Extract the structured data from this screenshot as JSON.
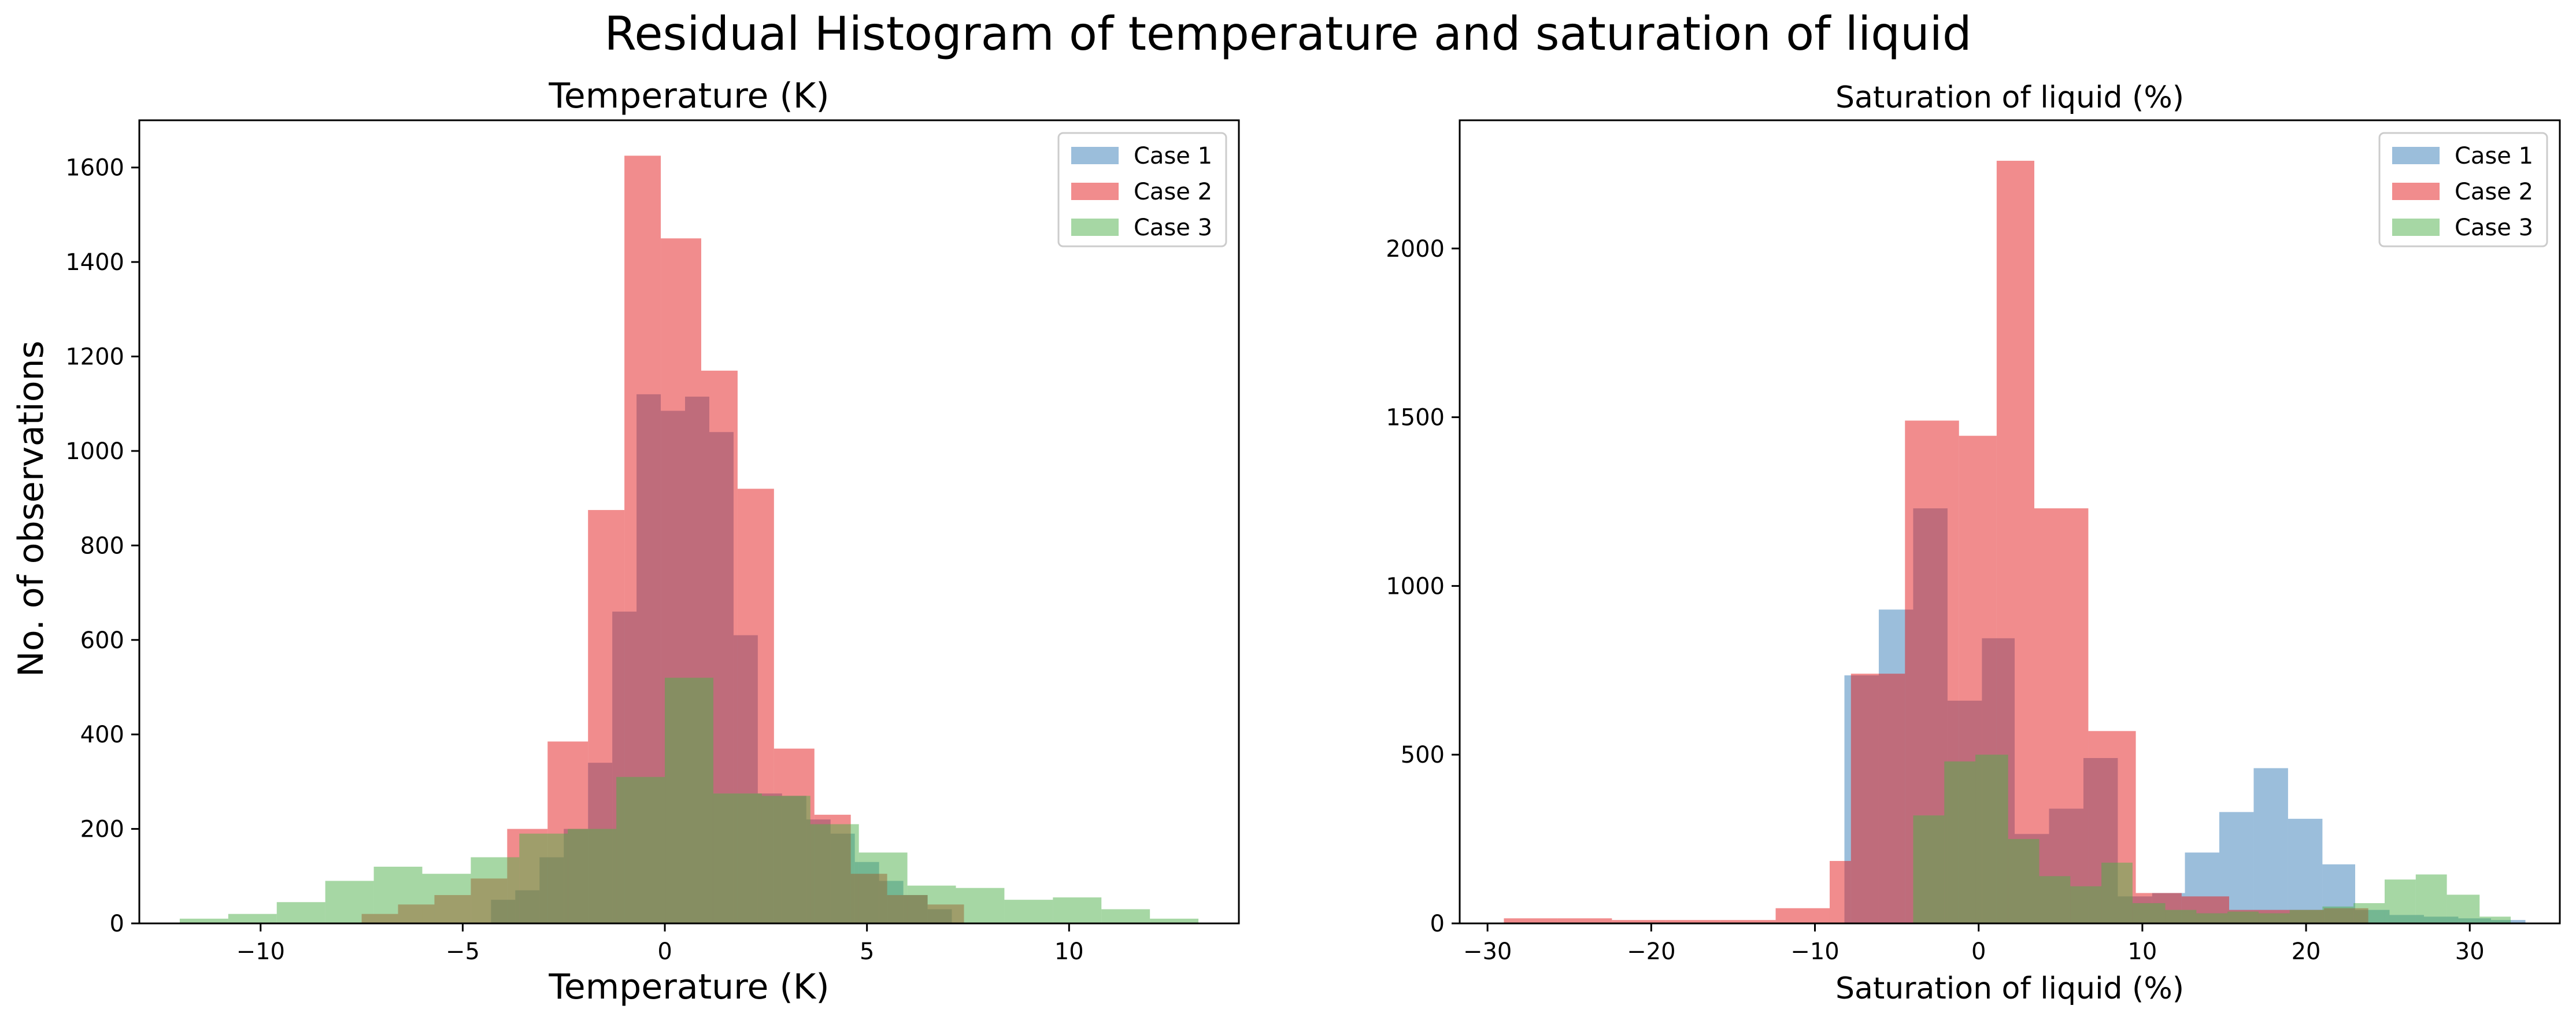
{
  "figure": {
    "suptitle": "Residual Histogram of temperature and saturation of liquid",
    "shared_ylabel": "No. of observations"
  },
  "colors": {
    "case1": "#377eb8",
    "case2": "#e41a1c",
    "case3": "#4daf4a",
    "axes": "#000000"
  },
  "chart_data": [
    {
      "type": "histogram",
      "title": "Temperature (K)",
      "xlabel": "Temperature (K)",
      "ylabel": "No. of observations",
      "xlim": [
        -13,
        14.2
      ],
      "ylim": [
        0,
        1700
      ],
      "xticks": [
        -10,
        -5,
        0,
        5,
        10
      ],
      "xtick_labels": [
        "−10",
        "−5",
        "0",
        "5",
        "10"
      ],
      "yticks": [
        0,
        200,
        400,
        600,
        800,
        1000,
        1200,
        1400,
        1600
      ],
      "ytick_labels": [
        "0",
        "200",
        "400",
        "600",
        "800",
        "1000",
        "1200",
        "1400",
        "1600"
      ],
      "legend": "top-right",
      "grid": false,
      "series": [
        {
          "name": "Case 1",
          "color": "#377eb8",
          "bins": [
            [
              -4.3,
              -3.7,
              50
            ],
            [
              -3.7,
              -3.1,
              70
            ],
            [
              -3.1,
              -2.5,
              140
            ],
            [
              -2.5,
              -1.9,
              200
            ],
            [
              -1.9,
              -1.3,
              340
            ],
            [
              -1.3,
              -0.7,
              660
            ],
            [
              -0.7,
              -0.1,
              1120
            ],
            [
              -0.1,
              0.5,
              1085
            ],
            [
              0.5,
              1.1,
              1115
            ],
            [
              1.1,
              1.7,
              1040
            ],
            [
              1.7,
              2.3,
              610
            ],
            [
              2.3,
              2.9,
              275
            ],
            [
              2.9,
              3.5,
              270
            ],
            [
              3.5,
              4.1,
              220
            ],
            [
              4.1,
              4.7,
              190
            ],
            [
              4.7,
              5.3,
              130
            ],
            [
              5.3,
              5.9,
              90
            ],
            [
              5.9,
              6.5,
              60
            ],
            [
              6.5,
              7.1,
              30
            ]
          ]
        },
        {
          "name": "Case 2",
          "color": "#e41a1c",
          "bins": [
            [
              -7.5,
              -6.6,
              20
            ],
            [
              -6.6,
              -5.7,
              40
            ],
            [
              -5.7,
              -4.8,
              60
            ],
            [
              -4.8,
              -3.9,
              95
            ],
            [
              -3.9,
              -2.9,
              200
            ],
            [
              -2.9,
              -1.9,
              385
            ],
            [
              -1.9,
              -1.0,
              875
            ],
            [
              -1.0,
              -0.1,
              1625
            ],
            [
              -0.1,
              0.9,
              1450
            ],
            [
              0.9,
              1.8,
              1170
            ],
            [
              1.8,
              2.7,
              920
            ],
            [
              2.7,
              3.7,
              370
            ],
            [
              3.7,
              4.6,
              230
            ],
            [
              4.6,
              5.5,
              105
            ],
            [
              5.5,
              6.5,
              60
            ],
            [
              6.5,
              7.4,
              40
            ]
          ]
        },
        {
          "name": "Case 3",
          "color": "#4daf4a",
          "bins": [
            [
              -12.0,
              -10.8,
              10
            ],
            [
              -10.8,
              -9.6,
              20
            ],
            [
              -9.6,
              -8.4,
              45
            ],
            [
              -8.4,
              -7.2,
              90
            ],
            [
              -7.2,
              -6.0,
              120
            ],
            [
              -6.0,
              -4.8,
              105
            ],
            [
              -4.8,
              -3.6,
              140
            ],
            [
              -3.6,
              -2.4,
              190
            ],
            [
              -2.4,
              -1.2,
              200
            ],
            [
              -1.2,
              0.0,
              310
            ],
            [
              0.0,
              1.2,
              520
            ],
            [
              1.2,
              2.4,
              275
            ],
            [
              2.4,
              3.6,
              270
            ],
            [
              3.6,
              4.8,
              210
            ],
            [
              4.8,
              6.0,
              150
            ],
            [
              6.0,
              7.2,
              80
            ],
            [
              7.2,
              8.4,
              75
            ],
            [
              8.4,
              9.6,
              50
            ],
            [
              9.6,
              10.8,
              55
            ],
            [
              10.8,
              12.0,
              30
            ],
            [
              12.0,
              13.2,
              10
            ]
          ]
        }
      ]
    },
    {
      "type": "histogram",
      "title": "Saturation of liquid (%)",
      "xlabel": "Saturation of liquid (%)",
      "ylabel": "",
      "xlim": [
        -31.7,
        35.5
      ],
      "ylim": [
        0,
        2380
      ],
      "xticks": [
        -30,
        -20,
        -10,
        0,
        10,
        20,
        30
      ],
      "xtick_labels": [
        "−30",
        "−20",
        "−10",
        "0",
        "10",
        "20",
        "30"
      ],
      "yticks": [
        0,
        500,
        1000,
        1500,
        2000
      ],
      "ytick_labels": [
        "0",
        "500",
        "1000",
        "1500",
        "2000"
      ],
      "legend": "top-right",
      "grid": false,
      "series": [
        {
          "name": "Case 1",
          "color": "#377eb8",
          "bins": [
            [
              -8.2,
              -6.1,
              735
            ],
            [
              -6.1,
              -4.0,
              930
            ],
            [
              -4.0,
              -1.9,
              1230
            ],
            [
              -1.9,
              0.2,
              660
            ],
            [
              0.2,
              2.2,
              845
            ],
            [
              2.2,
              4.3,
              265
            ],
            [
              4.3,
              6.4,
              340
            ],
            [
              6.4,
              8.5,
              490
            ],
            [
              8.5,
              10.6,
              80
            ],
            [
              10.6,
              12.6,
              90
            ],
            [
              12.6,
              14.7,
              210
            ],
            [
              14.7,
              16.8,
              330
            ],
            [
              16.8,
              18.9,
              460
            ],
            [
              18.9,
              21.0,
              310
            ],
            [
              21.0,
              23.0,
              175
            ],
            [
              23.0,
              25.1,
              40
            ],
            [
              25.1,
              27.2,
              25
            ],
            [
              27.2,
              29.3,
              20
            ],
            [
              29.3,
              31.3,
              15
            ],
            [
              31.3,
              33.4,
              10
            ]
          ]
        },
        {
          "name": "Case 2",
          "color": "#e41a1c",
          "bins": [
            [
              -29.0,
              -25.7,
              15
            ],
            [
              -25.7,
              -22.4,
              15
            ],
            [
              -22.4,
              -19.1,
              10
            ],
            [
              -19.1,
              -15.8,
              10
            ],
            [
              -15.8,
              -12.4,
              10
            ],
            [
              -12.4,
              -9.1,
              45
            ],
            [
              -9.1,
              -7.8,
              185
            ],
            [
              -7.8,
              -4.5,
              740
            ],
            [
              -4.5,
              -1.2,
              1490
            ],
            [
              -1.2,
              1.1,
              1445
            ],
            [
              1.1,
              3.4,
              2260
            ],
            [
              3.4,
              6.7,
              1230
            ],
            [
              6.7,
              9.6,
              570
            ],
            [
              9.6,
              12.4,
              90
            ],
            [
              12.4,
              15.3,
              80
            ],
            [
              15.3,
              18.2,
              40
            ],
            [
              18.2,
              21.1,
              40
            ],
            [
              21.1,
              23.8,
              45
            ]
          ]
        },
        {
          "name": "Case 3",
          "color": "#4daf4a",
          "bins": [
            [
              -4.0,
              -2.1,
              320
            ],
            [
              -2.1,
              -0.2,
              480
            ],
            [
              -0.2,
              1.8,
              500
            ],
            [
              1.8,
              3.7,
              250
            ],
            [
              3.7,
              5.6,
              140
            ],
            [
              5.6,
              7.5,
              110
            ],
            [
              7.5,
              9.4,
              180
            ],
            [
              9.4,
              11.4,
              60
            ],
            [
              11.4,
              13.3,
              40
            ],
            [
              13.3,
              15.2,
              30
            ],
            [
              15.2,
              17.1,
              35
            ],
            [
              17.1,
              19.0,
              30
            ],
            [
              19.0,
              21.0,
              40
            ],
            [
              21.0,
              22.9,
              50
            ],
            [
              22.9,
              24.8,
              60
            ],
            [
              24.8,
              26.7,
              130
            ],
            [
              26.7,
              28.6,
              145
            ],
            [
              28.6,
              30.6,
              85
            ],
            [
              30.6,
              32.5,
              20
            ]
          ]
        }
      ]
    }
  ]
}
